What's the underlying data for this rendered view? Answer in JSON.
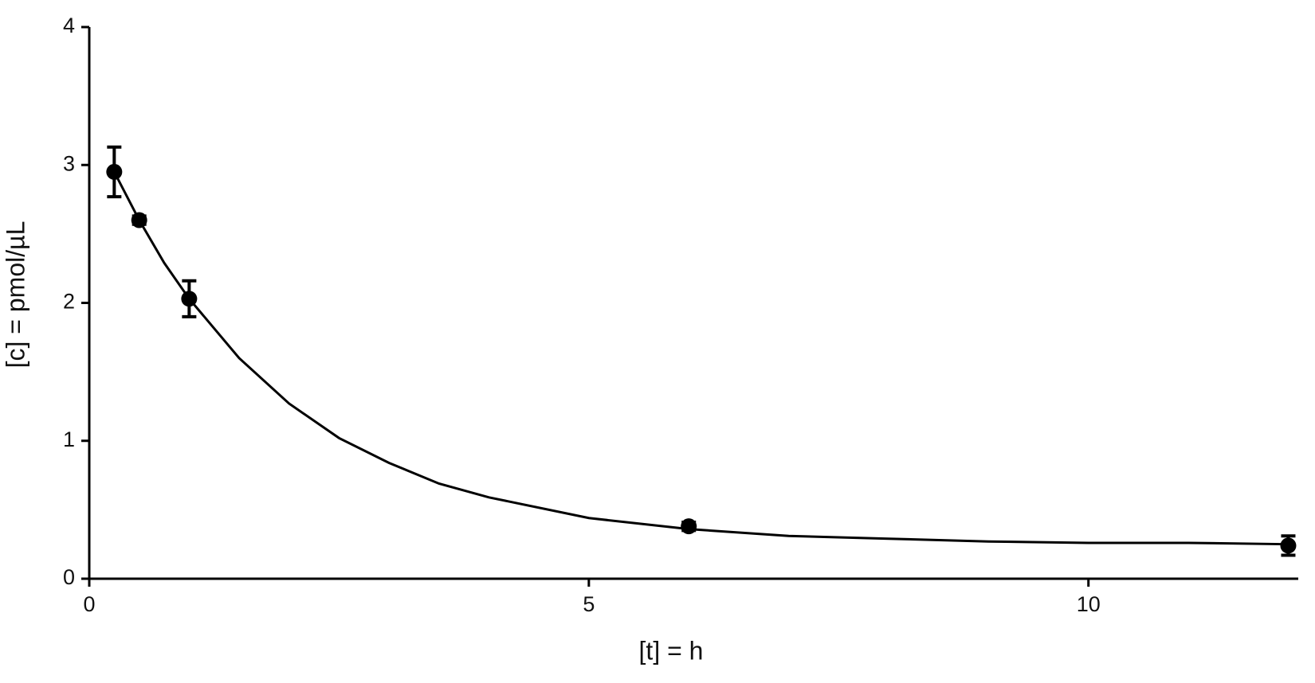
{
  "chart_data": {
    "type": "scatter",
    "x_label": "[t] = h",
    "y_label": "[c] = pmol/µL",
    "x": [
      0.25,
      0.5,
      1,
      6,
      12
    ],
    "values": [
      2.95,
      2.6,
      2.03,
      0.38,
      0.24
    ],
    "errors": [
      0.18,
      0.03,
      0.13,
      0.03,
      0.07
    ],
    "color": "#000000",
    "curve": {
      "x": [
        0.25,
        0.5,
        0.75,
        1,
        1.5,
        2,
        2.5,
        3,
        3.5,
        4,
        5,
        6,
        7,
        8,
        9,
        10,
        11,
        12
      ],
      "values": [
        2.95,
        2.6,
        2.29,
        2.03,
        1.6,
        1.27,
        1.02,
        0.84,
        0.69,
        0.59,
        0.44,
        0.36,
        0.31,
        0.29,
        0.27,
        0.26,
        0.26,
        0.25
      ]
    },
    "xlim": [
      0,
      12.1
    ],
    "xticks": [
      0,
      5,
      10
    ],
    "ylim": [
      0,
      4
    ],
    "yticks": [
      0,
      1,
      2,
      3,
      4
    ]
  }
}
